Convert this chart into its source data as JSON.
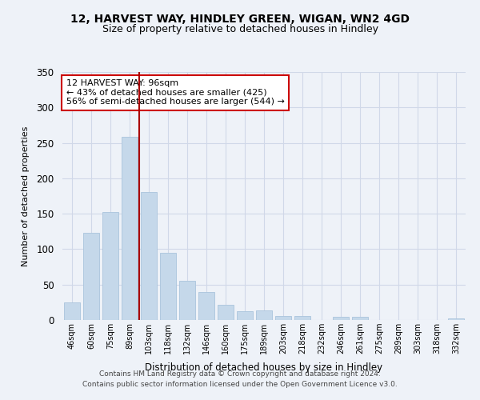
{
  "title1": "12, HARVEST WAY, HINDLEY GREEN, WIGAN, WN2 4GD",
  "title2": "Size of property relative to detached houses in Hindley",
  "xlabel": "Distribution of detached houses by size in Hindley",
  "ylabel": "Number of detached properties",
  "categories": [
    "46sqm",
    "60sqm",
    "75sqm",
    "89sqm",
    "103sqm",
    "118sqm",
    "132sqm",
    "146sqm",
    "160sqm",
    "175sqm",
    "189sqm",
    "203sqm",
    "218sqm",
    "232sqm",
    "246sqm",
    "261sqm",
    "275sqm",
    "289sqm",
    "303sqm",
    "318sqm",
    "332sqm"
  ],
  "values": [
    25,
    123,
    152,
    258,
    181,
    95,
    55,
    40,
    22,
    12,
    14,
    6,
    6,
    0,
    5,
    5,
    0,
    0,
    0,
    0,
    2
  ],
  "bar_color": "#c5d8ea",
  "bar_edge_color": "#aac4dc",
  "vline_x_index": 3.5,
  "vline_color": "#aa0000",
  "ylim": [
    0,
    350
  ],
  "yticks": [
    0,
    50,
    100,
    150,
    200,
    250,
    300,
    350
  ],
  "annotation_line1": "12 HARVEST WAY: 96sqm",
  "annotation_line2": "← 43% of detached houses are smaller (425)",
  "annotation_line3": "56% of semi-detached houses are larger (544) →",
  "footnote1": "Contains HM Land Registry data © Crown copyright and database right 2024.",
  "footnote2": "Contains public sector information licensed under the Open Government Licence v3.0.",
  "bg_color": "#eef2f8",
  "plot_bg_color": "#eef2f8",
  "grid_color": "#d0d8e8"
}
